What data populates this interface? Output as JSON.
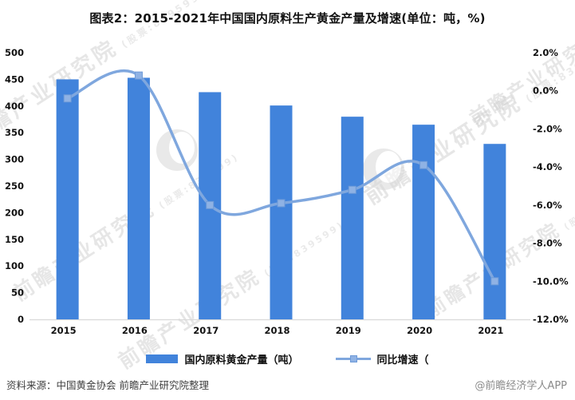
{
  "title": "图表2：2015-2021年中国国内原料生产黄金产量及增速(单位：吨，%)",
  "chart_data": {
    "type": "bar",
    "subtype": "bar+line combo, dual axis",
    "categories": [
      "2015",
      "2016",
      "2017",
      "2018",
      "2019",
      "2020",
      "2021"
    ],
    "series": [
      {
        "name": "国内原料黄金产量（吨）",
        "type": "bar",
        "axis": "left",
        "values": [
          450,
          453,
          426,
          401,
          380,
          365,
          329
        ]
      },
      {
        "name": "同比增速（",
        "type": "line",
        "axis": "right",
        "smooth": true,
        "values": [
          -0.4,
          0.8,
          -6.0,
          -5.9,
          -5.2,
          -3.9,
          -10.0
        ]
      }
    ],
    "title": "图表2：2015-2021年中国国内原料生产黄金产量及增速(单位：吨，%)",
    "xlabel": "",
    "ylabel_left": "吨",
    "ylabel_right": "%",
    "left_axis": {
      "min": 0,
      "max": 500,
      "step": 50,
      "ticks": [
        "500",
        "450",
        "400",
        "350",
        "300",
        "250",
        "200",
        "150",
        "100",
        "50",
        "0"
      ]
    },
    "right_axis": {
      "min": -12,
      "max": 2,
      "step": 2,
      "ticks": [
        "2.0%",
        "0.0%",
        "-2.0%",
        "-4.0%",
        "-6.0%",
        "-8.0%",
        "-10.0%",
        "-12.0%"
      ]
    },
    "grid": false,
    "legend_position": "bottom"
  },
  "colors": {
    "bar": "#4183db",
    "line": "#7fa7de",
    "marker_fill": "#8fb2e4",
    "marker_stroke": "#6d9ad8",
    "axis_text": "#111111",
    "baseline": "#d9d9d9"
  },
  "legend": {
    "bar_label": "国内原料黄金产量（吨）",
    "line_label": "同比增速（"
  },
  "footer": {
    "source": "资料来源：中国黄金协会 前瞻产业研究院整理",
    "credit": "@前瞻经济学人APP"
  },
  "watermark": {
    "text": "前瞻产业研究院",
    "sub": "(股票:839599)"
  }
}
